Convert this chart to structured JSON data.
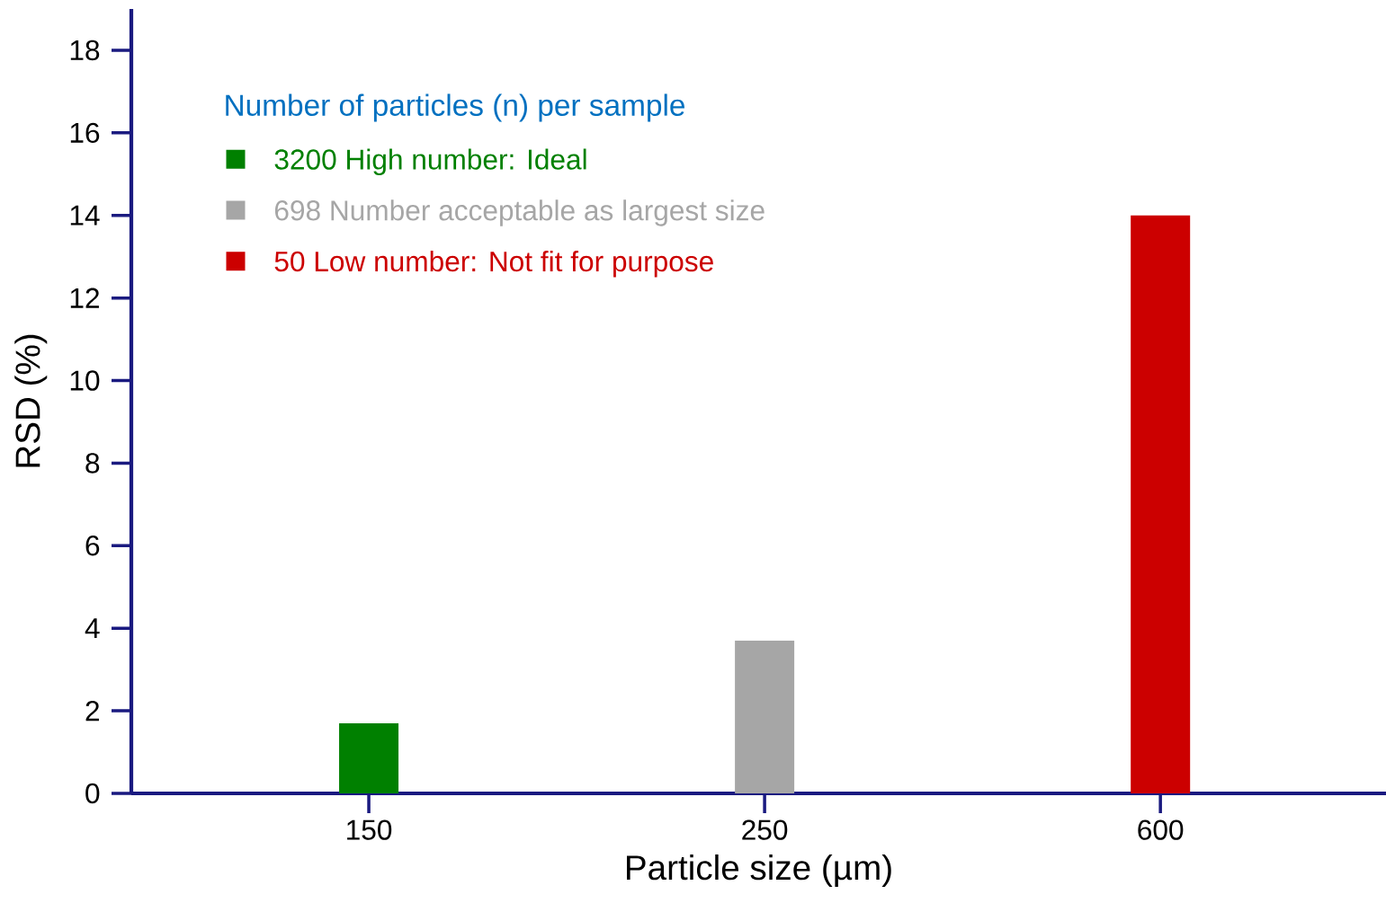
{
  "chart_data": {
    "type": "bar",
    "xlabel": "Particle size (µm)",
    "ylabel": "RSD (%)",
    "categories": [
      "150",
      "250",
      "600"
    ],
    "legend_title": "Number of particles (n) per sample",
    "legend": "top left",
    "ylim": [
      0,
      19
    ],
    "yticks": [
      0,
      2,
      4,
      6,
      8,
      10,
      12,
      14,
      16,
      18
    ],
    "series": [
      {
        "name": "3200 High number: Ideal",
        "color": "#008000",
        "values": [
          1.7,
          null,
          null
        ]
      },
      {
        "name": "698 Number acceptable as largest size",
        "color": "#a6a6a6",
        "values": [
          null,
          3.7,
          null
        ]
      },
      {
        "name": "50 Low number: Not fit for purpose",
        "color": "#cc0000",
        "values": [
          null,
          null,
          14.0
        ]
      }
    ]
  }
}
